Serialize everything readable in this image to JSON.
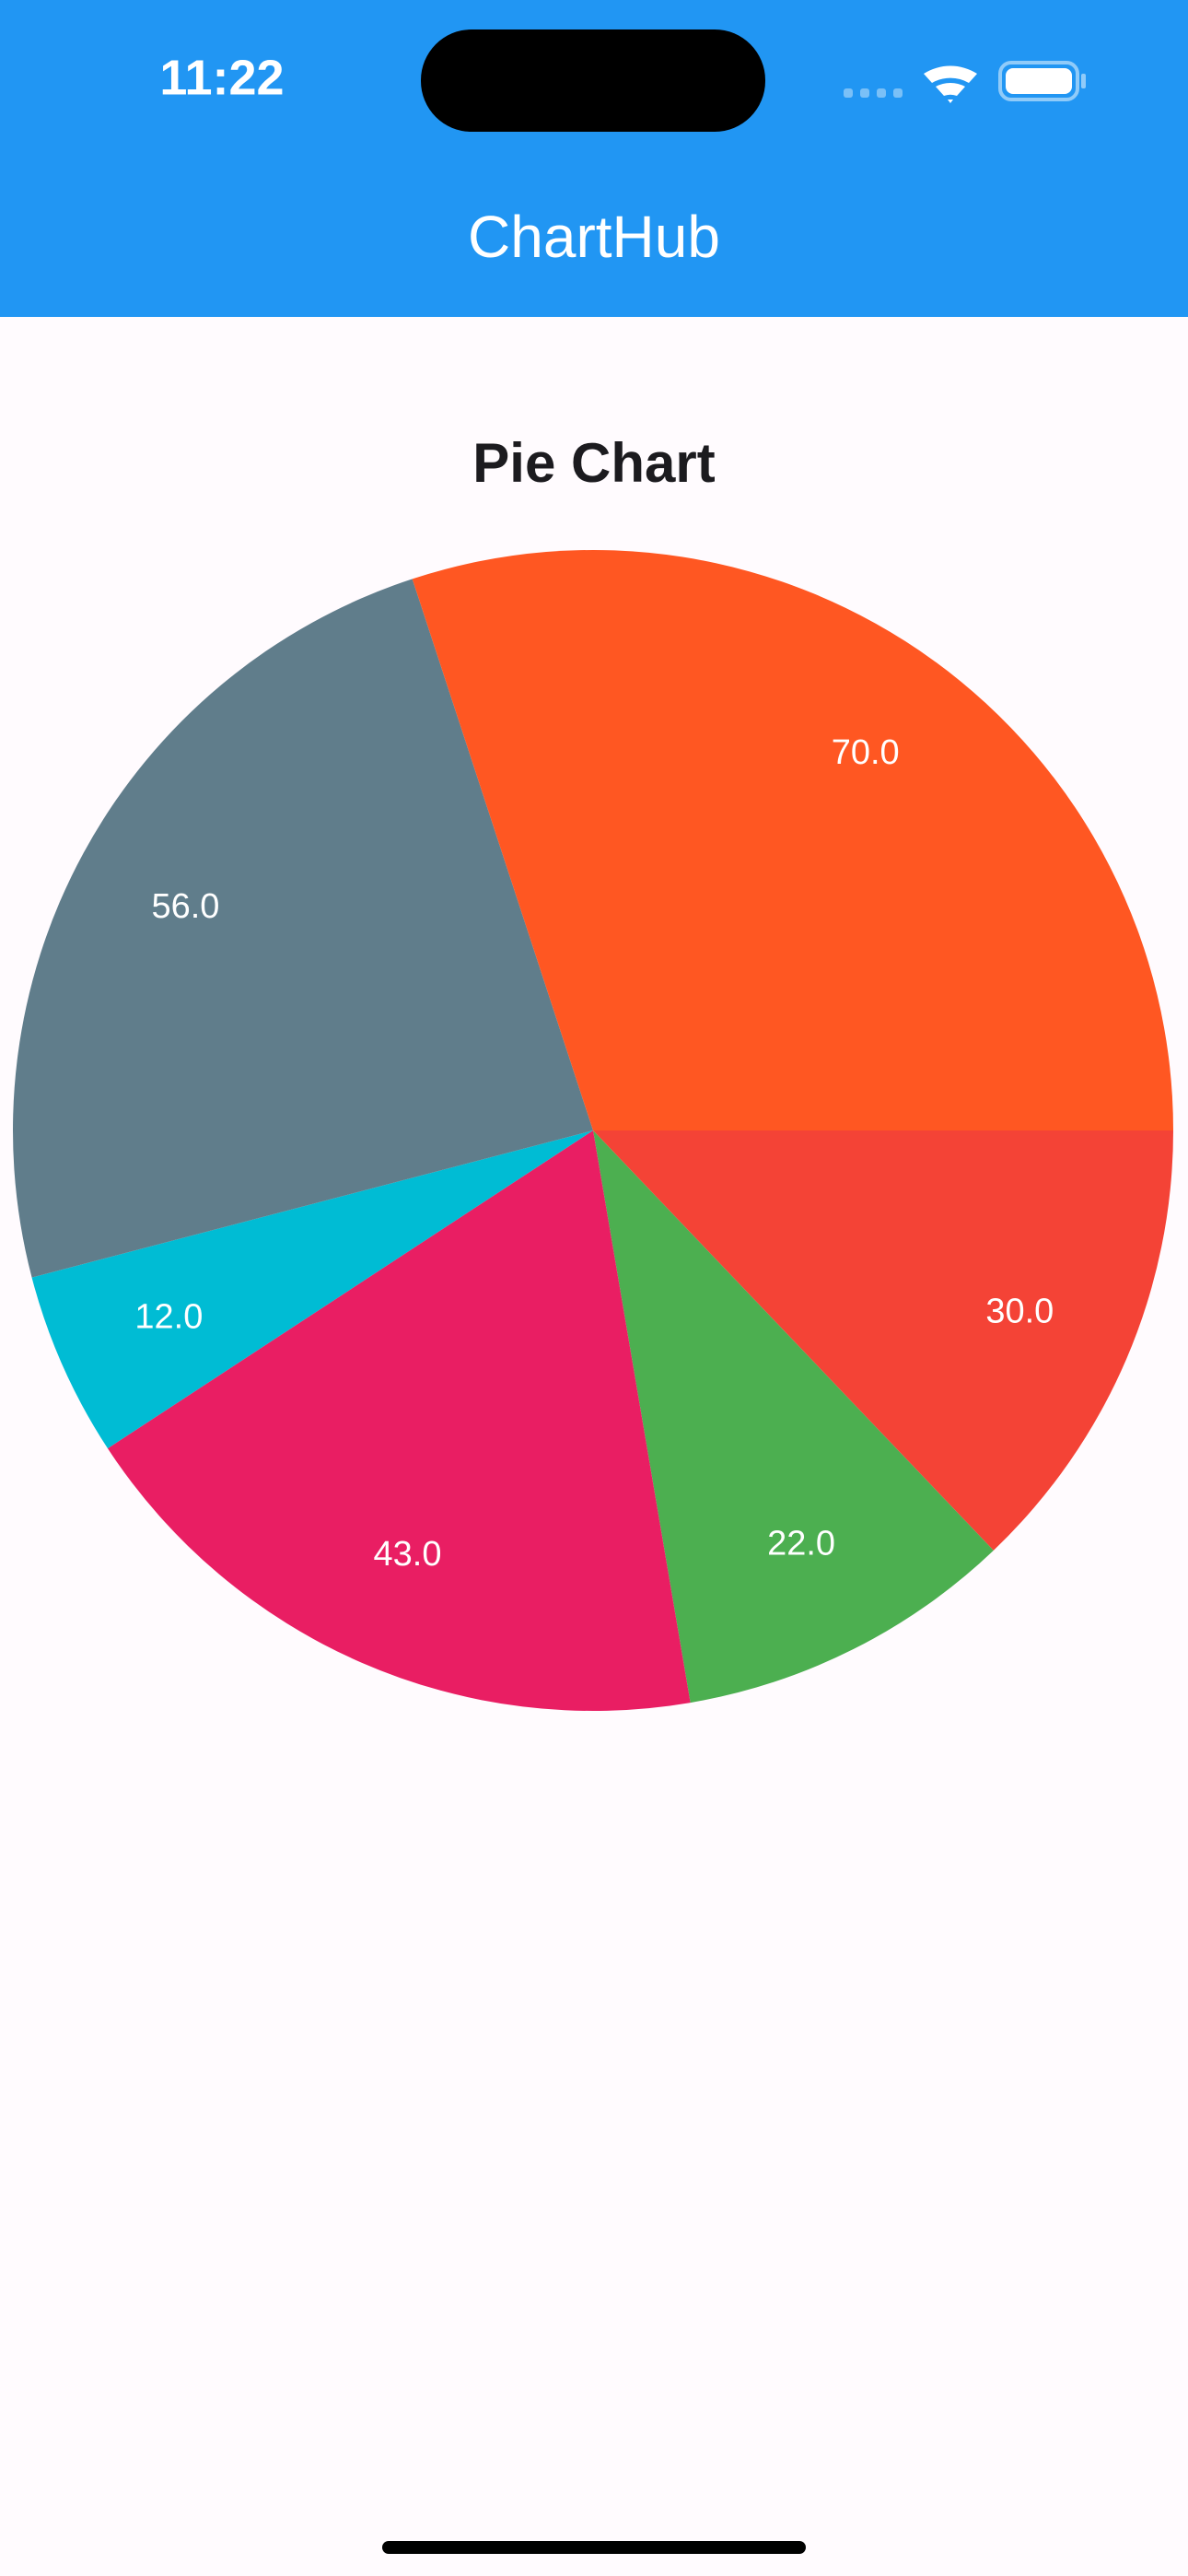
{
  "status_bar": {
    "time": "11:22"
  },
  "app_bar": {
    "title": "ChartHub"
  },
  "chart_data": {
    "type": "pie",
    "title": "Pie Chart",
    "values": [
      30,
      22,
      43,
      12,
      56,
      70
    ],
    "value_labels": [
      "30.0",
      "22.0",
      "43.0",
      "12.0",
      "56.0",
      "70.0"
    ],
    "colors": [
      "#F44336",
      "#4CAF50",
      "#E91E63",
      "#00BCD4",
      "#607D8B",
      "#FF5722"
    ]
  }
}
